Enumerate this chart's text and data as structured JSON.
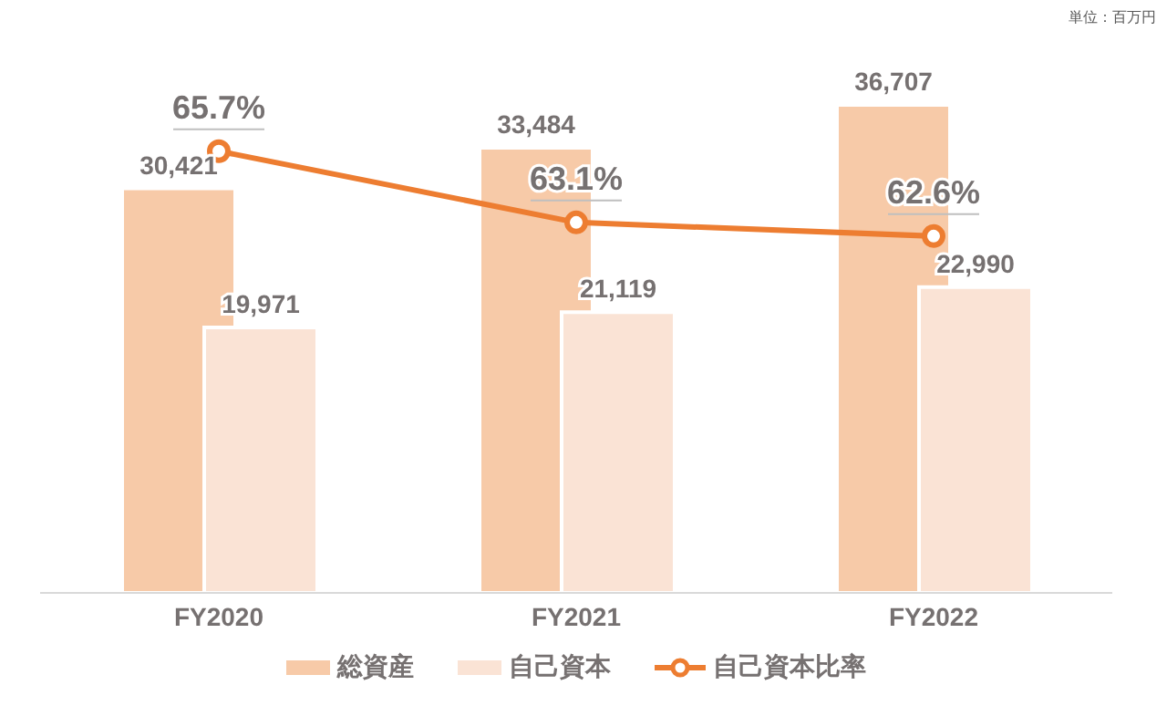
{
  "chart_data": {
    "type": "bar",
    "categories": [
      "FY2020",
      "FY2021",
      "FY2022"
    ],
    "series": [
      {
        "name": "総資産",
        "color": "#f7caa8",
        "values": [
          30421,
          33484,
          36707
        ],
        "value_labels": [
          "30,421",
          "33,484",
          "36,707"
        ]
      },
      {
        "name": "自己資本",
        "color": "#fae3d5",
        "values": [
          19971,
          21119,
          22990
        ],
        "value_labels": [
          "19,971",
          "21,119",
          "22,990"
        ]
      },
      {
        "name": "自己資本比率",
        "type": "line",
        "axis": "y2",
        "color": "#ed7d31",
        "values": [
          65.7,
          63.1,
          62.6
        ],
        "value_labels": [
          "65.7%",
          "63.1%",
          "62.6%"
        ]
      }
    ],
    "tick_labels": "x",
    "grid": false,
    "legend": "bottom",
    "marker": "circle",
    "line_style": "solid",
    "annotations": [
      "単位：百万円"
    ]
  }
}
